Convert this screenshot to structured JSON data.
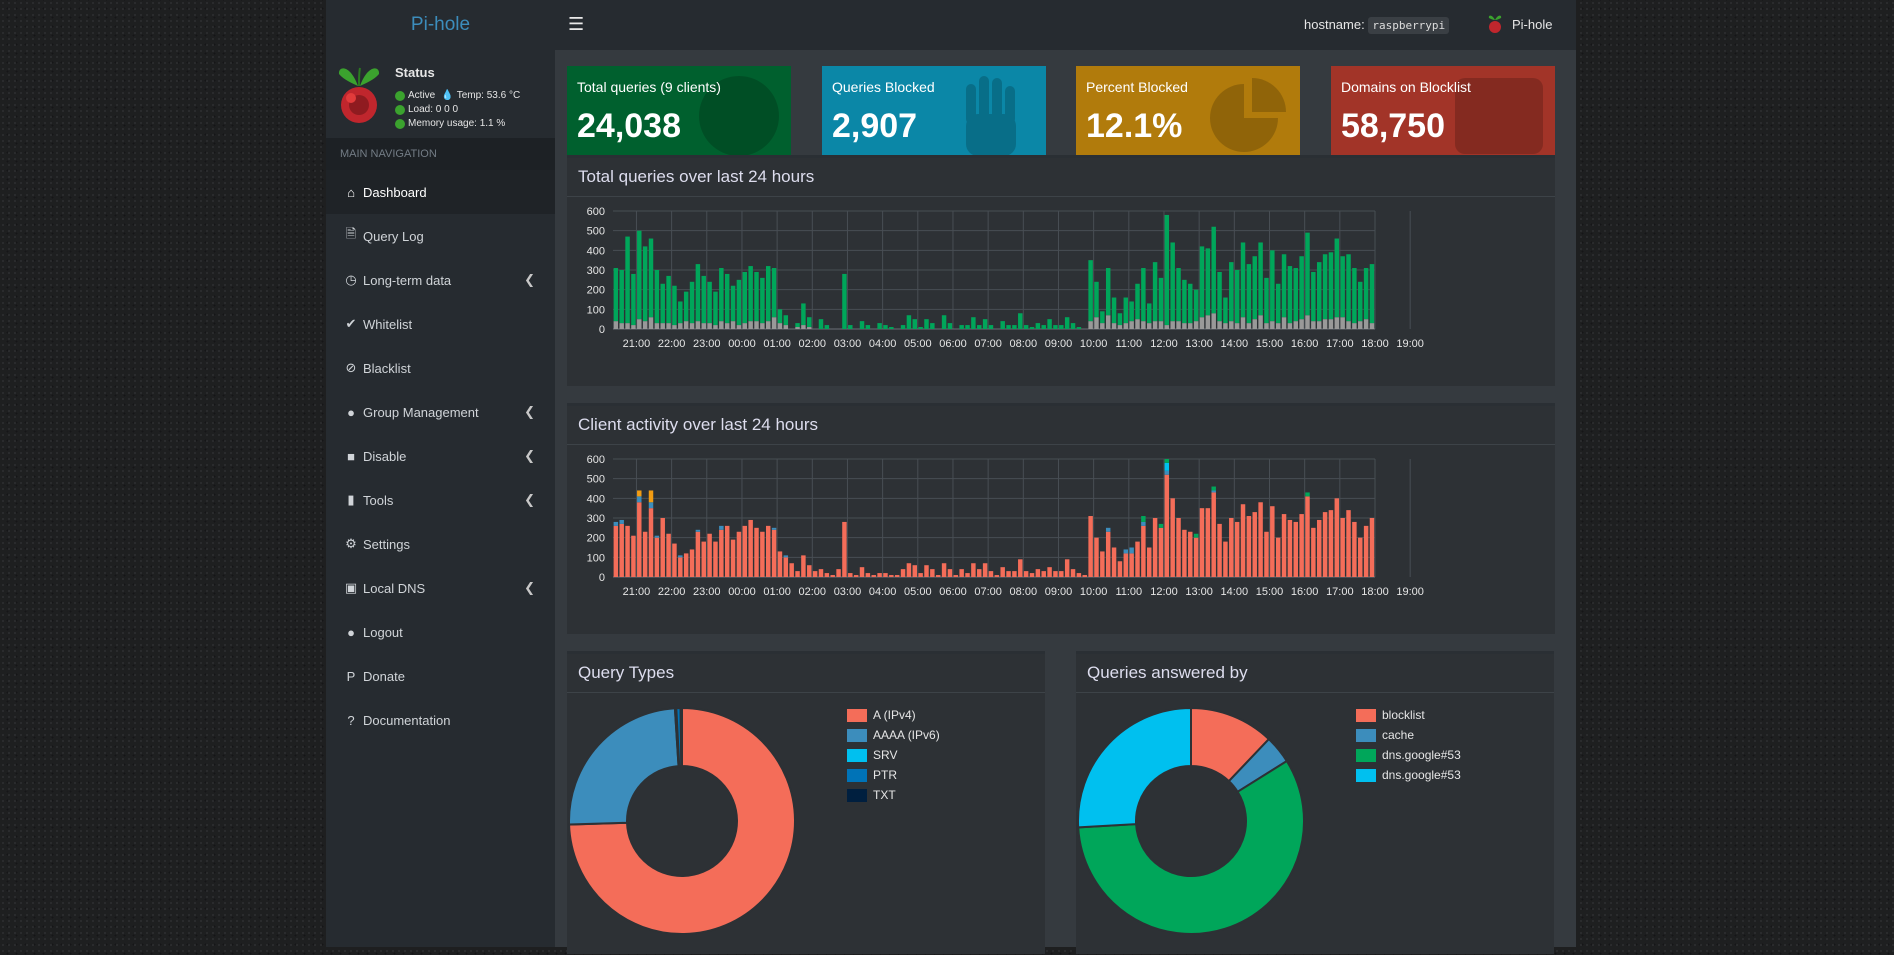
{
  "header": {
    "logo": "Pi-hole",
    "hostname_label": "hostname:",
    "hostname": "raspberrypi",
    "user": "Pi-hole"
  },
  "status": {
    "title": "Status",
    "active": "Active",
    "temp": "Temp: 53.6 °C",
    "load": "Load:  0  0  0",
    "memory": "Memory usage:  1.1 %"
  },
  "nav": {
    "header": "MAIN NAVIGATION",
    "items": [
      {
        "label": "Dashboard",
        "icon": "home-icon",
        "chev": false
      },
      {
        "label": "Query Log",
        "icon": "file-icon",
        "chev": false
      },
      {
        "label": "Long-term data",
        "icon": "clock-icon",
        "chev": true
      },
      {
        "label": "Whitelist",
        "icon": "check-circle-icon",
        "chev": false
      },
      {
        "label": "Blacklist",
        "icon": "ban-icon",
        "chev": false
      },
      {
        "label": "Group Management",
        "icon": "users-icon",
        "chev": true
      },
      {
        "label": "Disable",
        "icon": "stop-icon",
        "chev": true
      },
      {
        "label": "Tools",
        "icon": "folder-icon",
        "chev": true
      },
      {
        "label": "Settings",
        "icon": "gears-icon",
        "chev": false
      },
      {
        "label": "Local DNS",
        "icon": "address-book-icon",
        "chev": true
      },
      {
        "label": "Logout",
        "icon": "user-times-icon",
        "chev": false
      },
      {
        "label": "Donate",
        "icon": "paypal-icon",
        "chev": false
      },
      {
        "label": "Documentation",
        "icon": "question-circle-icon",
        "chev": false
      }
    ]
  },
  "tiles": [
    {
      "label": "Total queries (9 clients)",
      "value": "24,038",
      "color": "#00602e",
      "icon": "globe-icon"
    },
    {
      "label": "Queries Blocked",
      "value": "2,907",
      "color": "#0b87a7",
      "icon": "hand-icon"
    },
    {
      "label": "Percent Blocked",
      "value": "12.1%",
      "color": "#b17b0c",
      "icon": "pie-chart-icon"
    },
    {
      "label": "Domains on Blocklist",
      "value": "58,750",
      "color": "#a23428",
      "icon": "list-icon"
    }
  ],
  "panels": {
    "queries_title": "Total queries over last 24 hours",
    "clients_title": "Client activity over last 24 hours",
    "types_title": "Query Types",
    "answered_title": "Queries answered by"
  },
  "chart_data": [
    {
      "type": "bar",
      "name": "queries-over-time",
      "stacked": true,
      "ylim": [
        0,
        600
      ],
      "yticks": [
        0,
        100,
        200,
        300,
        400,
        500,
        600
      ],
      "xticks": [
        "21:00",
        "22:00",
        "23:00",
        "00:00",
        "01:00",
        "02:00",
        "03:00",
        "04:00",
        "05:00",
        "06:00",
        "07:00",
        "08:00",
        "09:00",
        "10:00",
        "11:00",
        "12:00",
        "13:00",
        "14:00",
        "15:00",
        "16:00",
        "17:00",
        "18:00",
        "19:00"
      ],
      "series": [
        {
          "color": "#00a65a",
          "values": [
            270,
            270,
            440,
            260,
            450,
            380,
            400,
            270,
            200,
            240,
            200,
            110,
            150,
            210,
            290,
            240,
            210,
            170,
            270,
            250,
            180,
            230,
            260,
            280,
            250,
            230,
            280,
            250,
            70,
            50,
            0,
            20,
            110,
            50,
            0,
            50,
            20,
            0,
            0,
            280,
            20,
            0,
            40,
            20,
            0,
            30,
            20,
            10,
            0,
            20,
            70,
            50,
            10,
            50,
            30,
            0,
            70,
            30,
            0,
            20,
            20,
            60,
            20,
            50,
            20,
            0,
            40,
            20,
            20,
            80,
            20,
            10,
            30,
            20,
            50,
            20,
            20,
            60,
            30,
            10,
            0,
            310,
            180,
            60,
            240,
            130,
            60,
            130,
            100,
            180,
            270,
            100,
            300,
            220,
            560,
            400,
            270,
            220,
            200,
            160,
            360,
            340,
            440,
            250,
            130,
            300,
            270,
            380,
            300,
            320,
            370,
            230,
            360,
            200,
            320,
            290,
            270,
            320,
            420,
            250,
            300,
            330,
            340,
            400,
            310,
            340,
            280,
            200,
            260,
            300
          ]
        },
        {
          "color": "#999999",
          "values": [
            40,
            30,
            30,
            20,
            50,
            40,
            60,
            30,
            30,
            30,
            20,
            30,
            40,
            30,
            40,
            30,
            30,
            20,
            40,
            30,
            40,
            20,
            30,
            40,
            40,
            30,
            40,
            60,
            30,
            20,
            0,
            10,
            20,
            10,
            0,
            0,
            0,
            0,
            0,
            0,
            0,
            0,
            0,
            0,
            0,
            0,
            0,
            0,
            0,
            0,
            0,
            0,
            0,
            0,
            0,
            0,
            0,
            0,
            0,
            0,
            0,
            0,
            0,
            0,
            0,
            0,
            0,
            0,
            0,
            0,
            0,
            0,
            0,
            0,
            0,
            0,
            0,
            0,
            0,
            0,
            0,
            40,
            60,
            30,
            70,
            30,
            20,
            30,
            40,
            50,
            40,
            30,
            40,
            40,
            20,
            40,
            40,
            30,
            30,
            40,
            60,
            70,
            80,
            40,
            30,
            40,
            30,
            60,
            30,
            50,
            70,
            30,
            40,
            30,
            60,
            30,
            40,
            50,
            70,
            40,
            40,
            50,
            50,
            60,
            60,
            40,
            30,
            40,
            50,
            30
          ]
        }
      ]
    },
    {
      "type": "bar",
      "name": "client-activity",
      "stacked": true,
      "ylim": [
        0,
        600
      ],
      "yticks": [
        0,
        100,
        200,
        300,
        400,
        500,
        600
      ],
      "xticks": [
        "21:00",
        "22:00",
        "23:00",
        "00:00",
        "01:00",
        "02:00",
        "03:00",
        "04:00",
        "05:00",
        "06:00",
        "07:00",
        "08:00",
        "09:00",
        "10:00",
        "11:00",
        "12:00",
        "13:00",
        "14:00",
        "15:00",
        "16:00",
        "17:00",
        "18:00",
        "19:00"
      ],
      "series": [
        {
          "color": "#f46d59",
          "values": [
            260,
            270,
            260,
            210,
            380,
            230,
            350,
            200,
            300,
            220,
            170,
            100,
            120,
            140,
            230,
            180,
            220,
            180,
            240,
            260,
            190,
            230,
            260,
            290,
            250,
            230,
            260,
            240,
            130,
            100,
            70,
            30,
            110,
            60,
            30,
            40,
            20,
            10,
            40,
            280,
            20,
            10,
            50,
            20,
            10,
            20,
            20,
            10,
            10,
            40,
            70,
            60,
            20,
            60,
            40,
            10,
            70,
            40,
            10,
            40,
            20,
            70,
            40,
            70,
            30,
            10,
            50,
            30,
            30,
            90,
            30,
            20,
            40,
            30,
            50,
            30,
            30,
            90,
            40,
            20,
            10,
            310,
            200,
            130,
            230,
            150,
            80,
            120,
            120,
            180,
            260,
            150,
            300,
            250,
            520,
            400,
            300,
            240,
            230,
            200,
            350,
            350,
            430,
            270,
            180,
            300,
            280,
            370,
            310,
            330,
            380,
            230,
            360,
            200,
            320,
            290,
            280,
            320,
            410,
            250,
            290,
            330,
            340,
            400,
            300,
            340,
            280,
            200,
            260,
            300
          ]
        },
        {
          "color": "#3c8dbc",
          "values": [
            20,
            20,
            0,
            0,
            30,
            0,
            30,
            10,
            0,
            0,
            0,
            10,
            0,
            0,
            10,
            0,
            0,
            0,
            20,
            0,
            0,
            0,
            0,
            0,
            0,
            0,
            0,
            10,
            0,
            10,
            0,
            0,
            0,
            0,
            0,
            0,
            0,
            0,
            0,
            0,
            0,
            0,
            0,
            0,
            0,
            0,
            0,
            0,
            0,
            0,
            0,
            0,
            0,
            0,
            0,
            0,
            0,
            0,
            0,
            0,
            0,
            0,
            0,
            0,
            0,
            0,
            0,
            0,
            0,
            0,
            0,
            0,
            0,
            0,
            0,
            0,
            0,
            0,
            0,
            0,
            0,
            0,
            0,
            0,
            20,
            0,
            0,
            20,
            30,
            0,
            20,
            0,
            0,
            0,
            20,
            0,
            0,
            0,
            0,
            0,
            0,
            0,
            10,
            0,
            0,
            0,
            0,
            0,
            0,
            0,
            0,
            0,
            0,
            0,
            0,
            0,
            0,
            0,
            0,
            0,
            0,
            0,
            0,
            0,
            0,
            0,
            0,
            0,
            0,
            0
          ]
        },
        {
          "color": "#f39c12",
          "values": [
            0,
            0,
            0,
            0,
            30,
            0,
            60,
            0,
            0,
            0,
            0,
            0,
            0,
            0,
            0,
            0,
            0,
            0,
            0,
            0,
            0,
            0,
            0,
            0,
            0,
            0,
            0,
            0,
            0,
            0,
            0,
            0,
            0,
            0,
            0,
            0,
            0,
            0,
            0,
            0,
            0,
            0,
            0,
            0,
            0,
            0,
            0,
            0,
            0,
            0,
            0,
            0,
            0,
            0,
            0,
            0,
            0,
            0,
            0,
            0,
            0,
            0,
            0,
            0,
            0,
            0,
            0,
            0,
            0,
            0,
            0,
            0,
            0,
            0,
            0,
            0,
            0,
            0,
            0,
            0,
            0,
            0,
            0,
            0,
            0,
            0,
            0,
            0,
            0,
            0,
            0,
            0,
            0,
            0,
            0,
            0,
            0,
            0,
            0,
            0,
            0,
            0,
            0,
            0,
            0,
            0,
            0,
            0,
            0,
            0,
            0,
            0,
            0,
            0,
            0,
            0,
            0,
            0,
            0,
            0,
            0,
            0,
            0,
            0,
            0,
            0,
            0,
            0,
            0,
            0
          ]
        },
        {
          "color": "#00c0ef",
          "values": [
            0,
            0,
            0,
            0,
            0,
            0,
            0,
            0,
            0,
            0,
            0,
            0,
            0,
            0,
            0,
            0,
            0,
            0,
            0,
            0,
            0,
            0,
            0,
            0,
            0,
            0,
            0,
            0,
            0,
            0,
            0,
            0,
            0,
            0,
            0,
            0,
            0,
            0,
            0,
            0,
            0,
            0,
            0,
            0,
            0,
            0,
            0,
            0,
            0,
            0,
            0,
            0,
            0,
            0,
            0,
            0,
            0,
            0,
            0,
            0,
            0,
            0,
            0,
            0,
            0,
            0,
            0,
            0,
            0,
            0,
            0,
            0,
            0,
            0,
            0,
            0,
            0,
            0,
            0,
            0,
            0,
            0,
            0,
            0,
            0,
            0,
            0,
            0,
            0,
            0,
            0,
            0,
            0,
            0,
            40,
            0,
            0,
            0,
            0,
            0,
            0,
            0,
            0,
            0,
            0,
            0,
            0,
            0,
            0,
            0,
            0,
            0,
            0,
            0,
            0,
            0,
            0,
            0,
            0,
            0,
            0,
            0,
            0,
            0,
            0,
            0,
            0,
            0,
            0,
            0
          ]
        },
        {
          "color": "#00a65a",
          "values": [
            0,
            0,
            0,
            0,
            0,
            0,
            0,
            0,
            0,
            0,
            0,
            0,
            0,
            0,
            0,
            0,
            0,
            0,
            0,
            0,
            0,
            0,
            0,
            0,
            0,
            0,
            0,
            0,
            0,
            0,
            0,
            0,
            0,
            0,
            0,
            0,
            0,
            0,
            0,
            0,
            0,
            0,
            0,
            0,
            0,
            0,
            0,
            0,
            0,
            0,
            0,
            0,
            0,
            0,
            0,
            0,
            0,
            0,
            0,
            0,
            0,
            0,
            0,
            0,
            0,
            0,
            0,
            0,
            0,
            0,
            0,
            0,
            0,
            0,
            0,
            0,
            0,
            0,
            0,
            0,
            0,
            0,
            0,
            0,
            0,
            0,
            0,
            0,
            0,
            0,
            30,
            0,
            0,
            20,
            20,
            0,
            0,
            0,
            0,
            20,
            0,
            0,
            20,
            0,
            0,
            0,
            0,
            0,
            0,
            0,
            0,
            0,
            0,
            0,
            0,
            0,
            0,
            0,
            20,
            0,
            0,
            0,
            0,
            0,
            0,
            0,
            0,
            0,
            0,
            0
          ]
        }
      ]
    },
    {
      "type": "pie",
      "name": "query-types",
      "donut": true,
      "labels": [
        "A (IPv4)",
        "AAAA (IPv6)",
        "SRV",
        "PTR",
        "TXT"
      ],
      "values": [
        74.5,
        24.5,
        0.2,
        0.6,
        0.2
      ],
      "colors": [
        "#f46d59",
        "#3c8dbc",
        "#00c0ef",
        "#0073b7",
        "#001f3f"
      ]
    },
    {
      "type": "pie",
      "name": "queries-answered-by",
      "donut": true,
      "labels": [
        "blocklist",
        "cache",
        "dns.google#53",
        "dns.google#53"
      ],
      "values": [
        12.1,
        4.0,
        58.0,
        25.9
      ],
      "colors": [
        "#f46d59",
        "#3c8dbc",
        "#00a65a",
        "#00c0ef"
      ]
    }
  ]
}
